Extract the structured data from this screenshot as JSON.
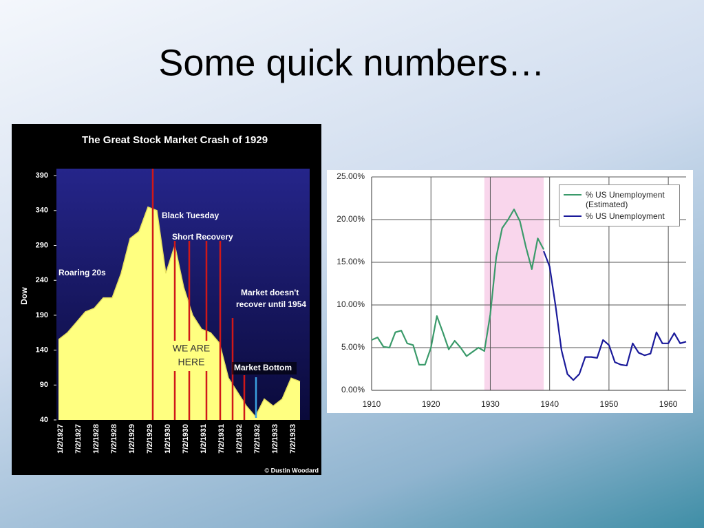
{
  "title": "Some quick numbers…",
  "chart_data": [
    {
      "type": "area",
      "title": "The Great Stock Market Crash of 1929",
      "y_label": "Dow",
      "categories": [
        "1/2/1927",
        null,
        "7/2/1927",
        null,
        "1/2/1928",
        null,
        "7/2/1928",
        null,
        "1/2/1929",
        null,
        "7/2/1929",
        null,
        "1/2/1930",
        null,
        "7/2/1930",
        null,
        "1/2/1931",
        null,
        "7/2/1931",
        null,
        "1/2/1932",
        null,
        "7/2/1932",
        null,
        "1/2/1933",
        null,
        "7/2/1933",
        null
      ],
      "values": [
        155,
        165,
        180,
        195,
        200,
        215,
        215,
        250,
        300,
        310,
        345,
        340,
        250,
        290,
        230,
        190,
        170,
        165,
        150,
        100,
        80,
        60,
        45,
        70,
        60,
        70,
        100,
        95
      ],
      "color": "#ffff80",
      "ylim": [
        40,
        400
      ],
      "yticks": [
        40,
        90,
        140,
        190,
        240,
        290,
        340,
        390
      ],
      "annotations": [
        "Roaring 20s",
        "Black Tuesday",
        "Short Recovery",
        "Market doesn't",
        "recover until 1954",
        "WE ARE",
        "HERE",
        "Market Bottom"
      ],
      "credit": "© Dustin Woodard"
    },
    {
      "type": "line",
      "series": [
        {
          "name": "% US Unemployment (Estimated)",
          "color": "#3a9a6a",
          "x": [
            1910,
            1911,
            1912,
            1913,
            1914,
            1915,
            1916,
            1917,
            1918,
            1919,
            1920,
            1921,
            1922,
            1923,
            1924,
            1925,
            1926,
            1927,
            1928,
            1929,
            1930,
            1931,
            1932,
            1933,
            1934,
            1935,
            1936,
            1937,
            1938,
            1939
          ],
          "values": [
            5.9,
            6.2,
            5.1,
            5.0,
            6.8,
            7.0,
            5.5,
            5.3,
            3.0,
            3.0,
            5.0,
            8.7,
            6.8,
            4.8,
            5.8,
            5.0,
            4.0,
            4.5,
            5.0,
            4.6,
            8.9,
            15.6,
            19.0,
            20.0,
            21.2,
            19.8,
            16.8,
            14.2,
            17.8,
            16.5
          ]
        },
        {
          "name": "% US Unemployment",
          "color": "#1a1a9a",
          "x": [
            1939,
            1940,
            1941,
            1942,
            1943,
            1944,
            1945,
            1946,
            1947,
            1948,
            1949,
            1950,
            1951,
            1952,
            1953,
            1954,
            1955,
            1956,
            1957,
            1958,
            1959,
            1960,
            1961,
            1962,
            1963
          ],
          "values": [
            16.3,
            14.5,
            9.9,
            4.7,
            1.9,
            1.2,
            1.9,
            3.9,
            3.9,
            3.8,
            5.9,
            5.3,
            3.3,
            3.0,
            2.9,
            5.5,
            4.4,
            4.1,
            4.3,
            6.8,
            5.5,
            5.5,
            6.7,
            5.5,
            5.7
          ]
        }
      ],
      "shaded_range": [
        1929,
        1939
      ],
      "shade_color": "#f9d6ec",
      "xlim": [
        1910,
        1963
      ],
      "xticks": [
        1910,
        1920,
        1930,
        1940,
        1950,
        1960
      ],
      "ylim": [
        0,
        25
      ],
      "yticks": [
        {
          "value": 0,
          "label": "0.00%"
        },
        {
          "value": 5,
          "label": "5.00%"
        },
        {
          "value": 10,
          "label": "10.00%"
        },
        {
          "value": 15,
          "label": "15.00%"
        },
        {
          "value": 20,
          "label": "20.00%"
        },
        {
          "value": 25,
          "label": "25.00%"
        }
      ],
      "grid": true,
      "legend": "top-right"
    }
  ]
}
